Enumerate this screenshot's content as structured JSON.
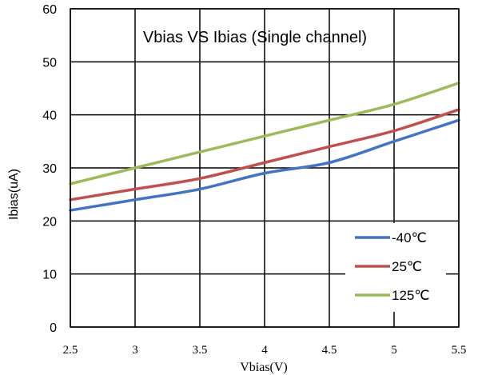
{
  "chart_data": {
    "type": "line",
    "title": "Vbias VS Ibias (Single channel)",
    "xlabel": "Vbias(V)",
    "ylabel": "Ibias(uA)",
    "x": [
      2.5,
      3,
      3.5,
      4,
      4.5,
      5,
      5.5
    ],
    "xticks": [
      "2.5",
      "3",
      "3.5",
      "4",
      "4.5",
      "5",
      "5.5"
    ],
    "yticks": [
      "0",
      "10",
      "20",
      "30",
      "40",
      "50",
      "60"
    ],
    "xlim": [
      2.5,
      5.5
    ],
    "ylim": [
      0,
      60
    ],
    "grid": true,
    "legend_position": "bottom-right",
    "series": [
      {
        "name": "-40℃",
        "color": "#4472C4",
        "values": [
          22,
          24,
          26,
          29,
          31,
          35,
          39
        ]
      },
      {
        "name": "25℃",
        "color": "#C0504D",
        "values": [
          24,
          26,
          28,
          31,
          34,
          37,
          41
        ]
      },
      {
        "name": "125℃",
        "color": "#9BBB59",
        "values": [
          27,
          30,
          33,
          36,
          39,
          42,
          46
        ]
      }
    ]
  }
}
